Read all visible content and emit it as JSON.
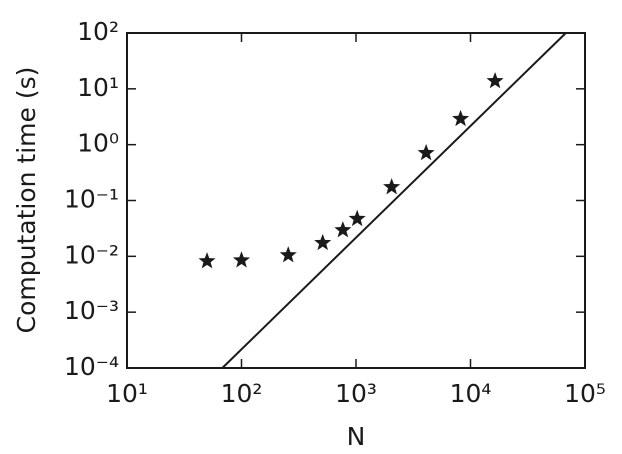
{
  "chart_data": {
    "type": "scatter",
    "xlabel": "N",
    "ylabel": "Computation time (s)",
    "xscale": "log",
    "yscale": "log",
    "xlim": [
      10,
      100000
    ],
    "ylim": [
      0.0001,
      100
    ],
    "xticks": [
      {
        "value": 10,
        "label": "10¹"
      },
      {
        "value": 100,
        "label": "10²"
      },
      {
        "value": 1000,
        "label": "10³"
      },
      {
        "value": 10000,
        "label": "10⁴"
      },
      {
        "value": 100000,
        "label": "10⁵"
      }
    ],
    "yticks": [
      {
        "value": 0.0001,
        "label": "10⁻⁴"
      },
      {
        "value": 0.001,
        "label": "10⁻³"
      },
      {
        "value": 0.01,
        "label": "10⁻²"
      },
      {
        "value": 0.1,
        "label": "10⁻¹"
      },
      {
        "value": 1,
        "label": "10⁰"
      },
      {
        "value": 10,
        "label": "10¹"
      },
      {
        "value": 100,
        "label": "10²"
      }
    ],
    "series": [
      {
        "style": "star",
        "color": "#1a1a1a",
        "x": [
          50,
          100,
          256,
          512,
          768,
          1024,
          2048,
          4096,
          8192,
          16384
        ],
        "values": [
          0.0082,
          0.0085,
          0.0105,
          0.0174,
          0.0295,
          0.047,
          0.174,
          0.71,
          2.9,
          13.8
        ]
      },
      {
        "style": "line",
        "color": "#1a1a1a",
        "x": [
          68,
          68000
        ],
        "values": [
          0.0001,
          100
        ]
      }
    ]
  }
}
